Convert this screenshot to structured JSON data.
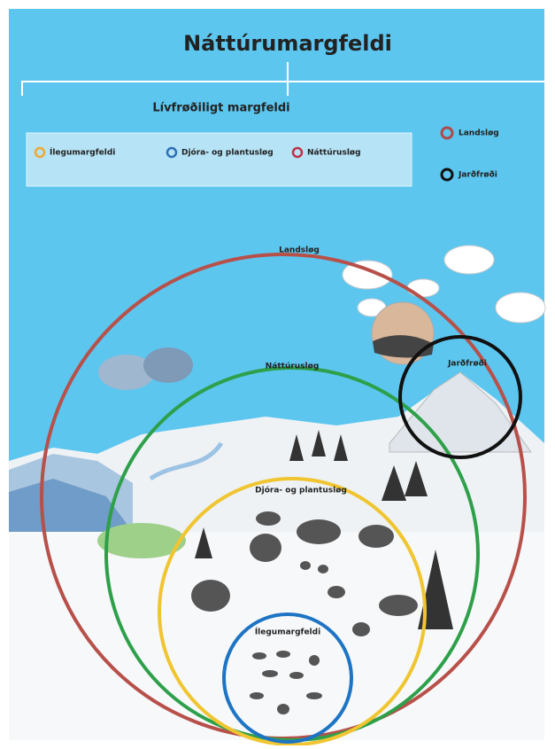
{
  "header": {
    "title": "Náttúrumargfeldi"
  },
  "legend": {
    "title": "Lívfrøðiligt margfeldi",
    "items": [
      {
        "label": "Ílegumargfeldi"
      },
      {
        "label": "Djóra- og plantusløg"
      },
      {
        "label": "Náttúrusløg"
      }
    ]
  },
  "side_legend": {
    "items": [
      {
        "label": "Landsløg"
      },
      {
        "label": "Jarðfrøði"
      }
    ]
  },
  "circles": [
    {
      "label": "Landsløg"
    },
    {
      "label": "Náttúrusløg"
    },
    {
      "label": "Djóra- og plantusløg"
    },
    {
      "label": "Ílegumargfeldi"
    },
    {
      "label": "Jarðfrøði"
    }
  ]
}
